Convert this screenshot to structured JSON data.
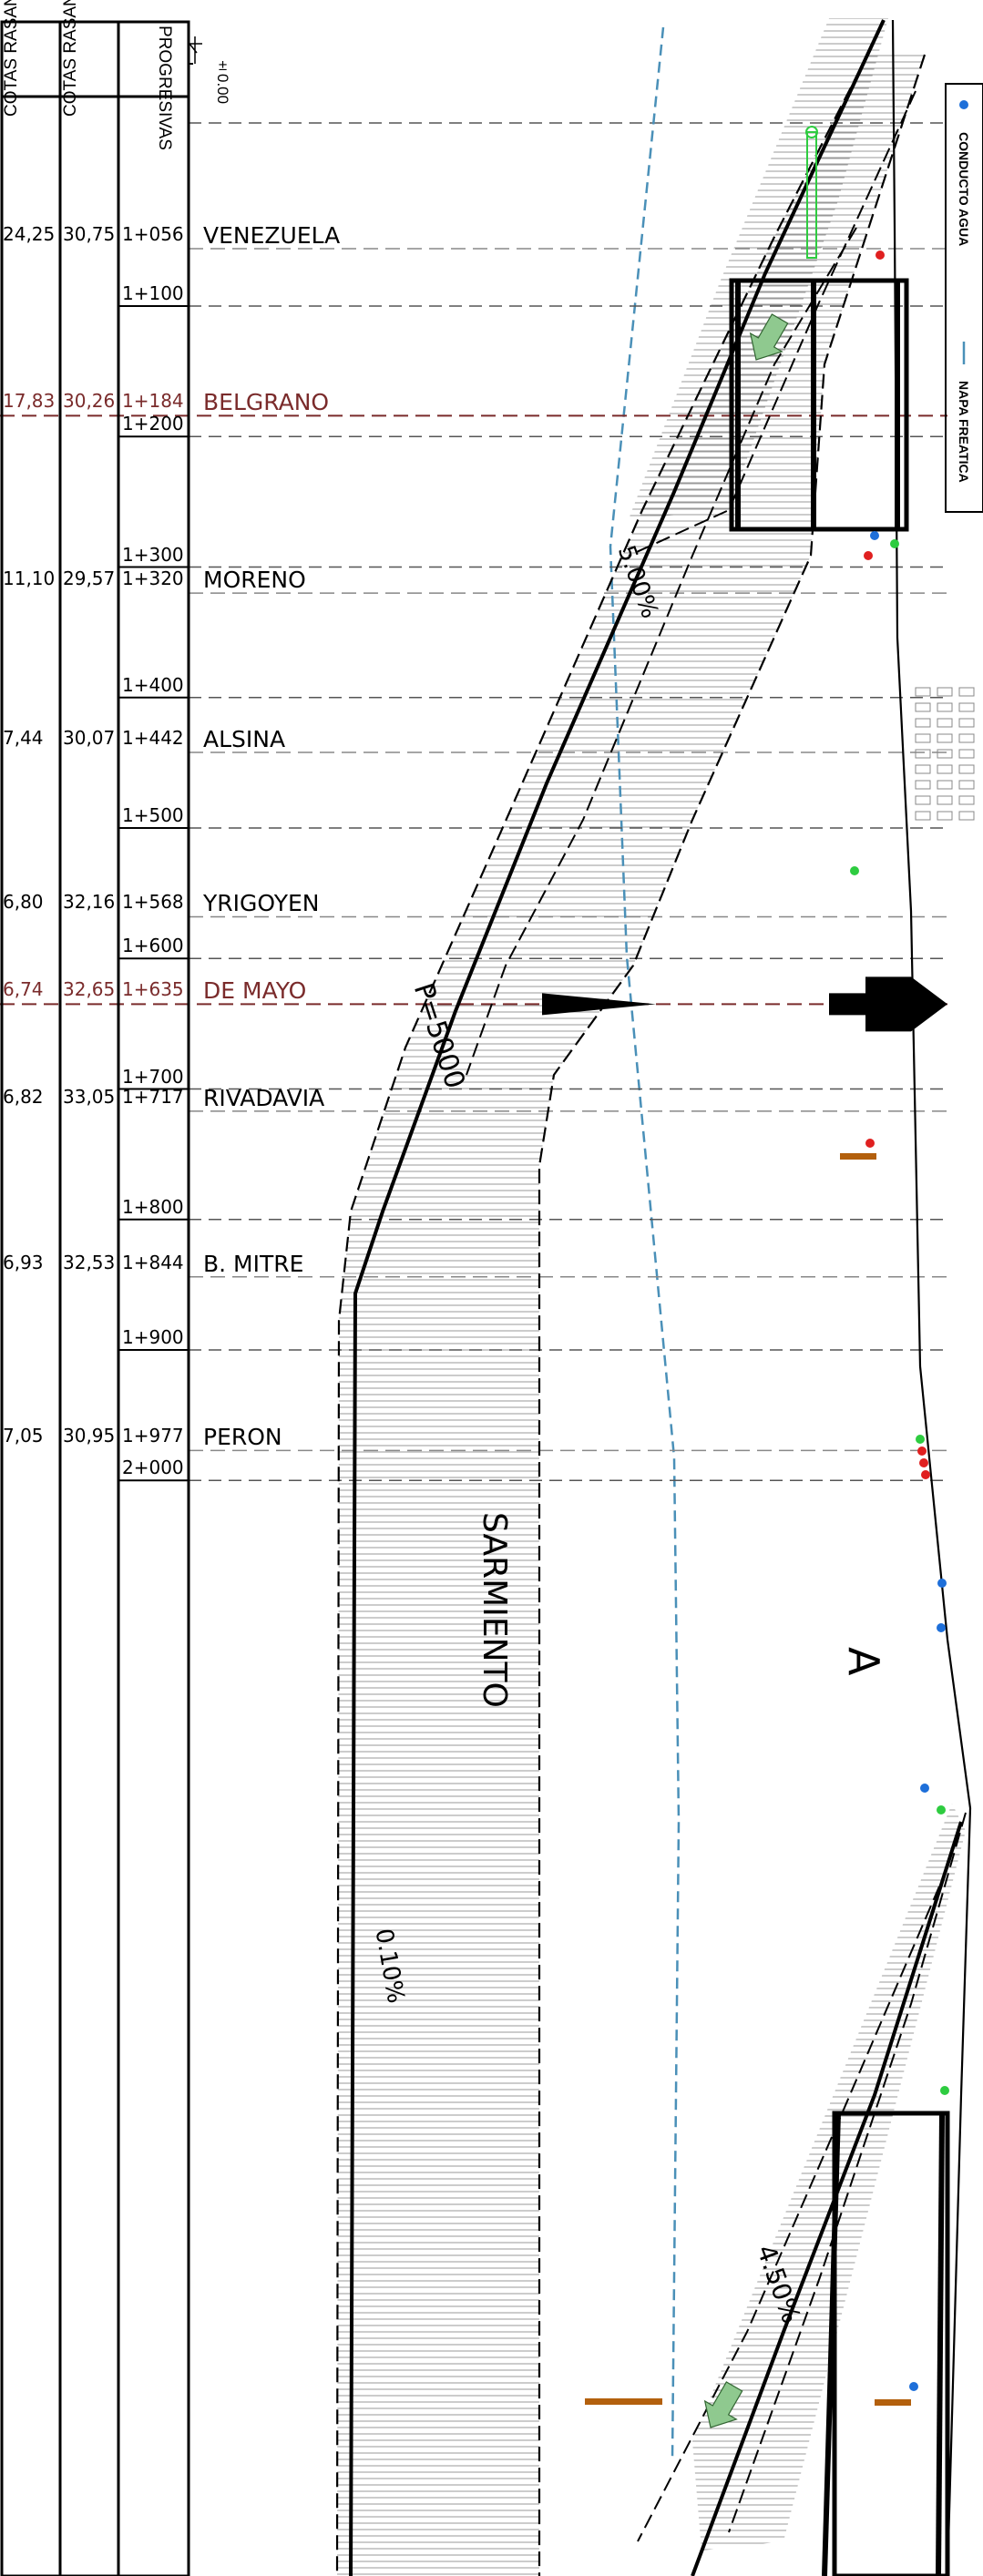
{
  "headers": {
    "progresivas": "PROGRESIVAS",
    "cotas_superficie": "COTAS RASANTE SUPERFICIE",
    "cotas_proyecto": "COTAS RASANTE PROYECTO",
    "datum": "±0.00"
  },
  "stations": [
    {
      "name": "VENEZUELA",
      "prog": "1+056",
      "sup": "30,75",
      "proy": "24,25",
      "highlight": false
    },
    {
      "name": "BELGRANO",
      "prog": "1+184",
      "sup": "30,26",
      "proy": "17,83",
      "highlight": true
    },
    {
      "name": "MORENO",
      "prog": "1+320",
      "sup": "29,57",
      "proy": "11,10",
      "highlight": false
    },
    {
      "name": "ALSINA",
      "prog": "1+442",
      "sup": "30,07",
      "proy": "7,44",
      "highlight": false
    },
    {
      "name": "YRIGOYEN",
      "prog": "1+568",
      "sup": "32,16",
      "proy": "6,80",
      "highlight": false
    },
    {
      "name": "DE  MAYO",
      "prog": "1+635",
      "sup": "32,65",
      "proy": "6,74",
      "highlight": true
    },
    {
      "name": "RIVADAVIA",
      "prog": "1+717",
      "sup": "33,05",
      "proy": "6,82",
      "highlight": false
    },
    {
      "name": "B.  MITRE",
      "prog": "1+844",
      "sup": "32,53",
      "proy": "6,93",
      "highlight": false
    },
    {
      "name": "PERON",
      "prog": "1+977",
      "sup": "30,95",
      "proy": "7,05",
      "highlight": false
    }
  ],
  "chainage_marks": [
    "1+100",
    "1+200",
    "1+300",
    "1+400",
    "1+500",
    "1+600",
    "1+700",
    "1+800",
    "1+900",
    "2+000"
  ],
  "annotations": {
    "slope_top": "5.00%",
    "radius": "P=5000",
    "street": "SARMIENTO",
    "slope_mid": "0.10%",
    "slope_bottom": "4.50%",
    "section": "A"
  },
  "legend": {
    "water": "CONDUCTO AGUA",
    "napa": "NAPA FREATICA"
  },
  "colors": {
    "line": "#000000",
    "highlight": "#7a2b2b",
    "napa": "#4a90b8",
    "arrow": "#8fc98f",
    "hatch": "#777777",
    "orange": "#b3600d",
    "green": "#2ecc40",
    "red": "#e02020",
    "blue": "#1e6fd9"
  }
}
